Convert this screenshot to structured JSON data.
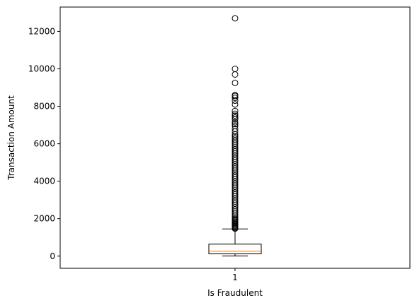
{
  "chart_data": {
    "type": "box",
    "title": "",
    "xlabel": "Is Fraudulent",
    "ylabel": "Transaction Amount",
    "categories": [
      "1"
    ],
    "ylim": [
      -650,
      13300
    ],
    "yticks": [
      0,
      2000,
      4000,
      6000,
      8000,
      10000,
      12000
    ],
    "ytick_labels": [
      "0",
      "2000",
      "4000",
      "6000",
      "8000",
      "10000",
      "12000"
    ],
    "box": {
      "whisker_low": 5,
      "q1": 120,
      "median": 260,
      "q3": 640,
      "whisker_high": 1450
    },
    "outliers": [
      12700,
      10000,
      9700,
      9250,
      8600,
      8550,
      8450,
      8300,
      8100,
      7750,
      7600,
      7500,
      7400,
      7300,
      7150,
      7050,
      6950,
      6800,
      6650,
      6500,
      6400,
      6300,
      6200,
      6100,
      6000,
      5900,
      5800,
      5700,
      5600,
      5500,
      5400,
      5300,
      5200,
      5100,
      5000,
      4900,
      4800,
      4700,
      4600,
      4500,
      4400,
      4300,
      4200,
      4100,
      4000,
      3900,
      3800,
      3700,
      3600,
      3500,
      3400,
      3300,
      3200,
      3100,
      3000,
      2900,
      2800,
      2700,
      2600,
      2500,
      2400,
      2300,
      2200,
      2100,
      2000,
      1950,
      1900,
      1850,
      1800,
      1750,
      1700,
      1650,
      1600,
      1550,
      1500,
      1470
    ],
    "grid": false,
    "colors": {
      "box": "#000000",
      "median": "#ff7f0e",
      "outlier": "#000000"
    }
  }
}
